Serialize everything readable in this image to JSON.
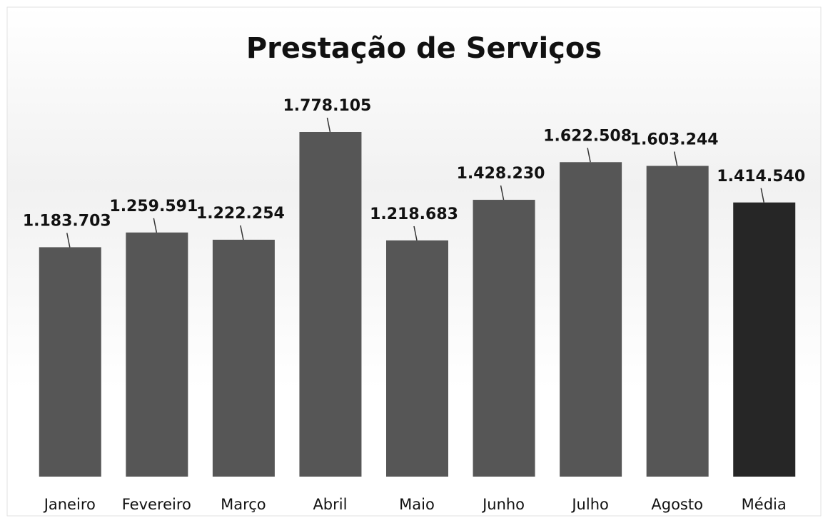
{
  "chart_data": {
    "type": "bar",
    "title": "Prestação de Serviços",
    "categories": [
      "Janeiro",
      "Fevereiro",
      "Março",
      "Abril",
      "Maio",
      "Junho",
      "Julho",
      "Agosto",
      "Média"
    ],
    "values": [
      1183703,
      1259591,
      1222254,
      1778105,
      1218683,
      1428230,
      1622508,
      1603244,
      1414540
    ],
    "value_labels": [
      "1.183.703",
      "1.259.591",
      "1.222.254",
      "1.778.105",
      "1.218.683",
      "1.428.230",
      "1.622.508",
      "1.603.244",
      "1.414.540"
    ],
    "colors": [
      "#565656",
      "#565656",
      "#565656",
      "#565656",
      "#565656",
      "#565656",
      "#565656",
      "#565656",
      "#262626"
    ]
  }
}
